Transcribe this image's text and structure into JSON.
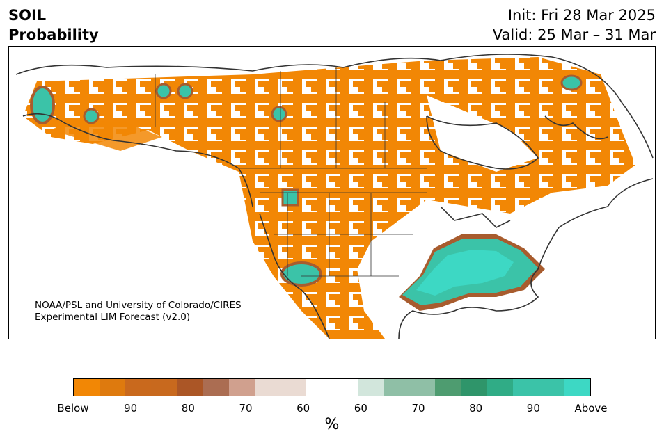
{
  "title": {
    "variable": "SOIL",
    "product": "Probability",
    "init": "Init: Fri 28 Mar 2025",
    "valid": "Valid: 25 Mar – 31 Mar"
  },
  "credit": {
    "line1": "NOAA/PSL and University of Colorado/CIRES",
    "line2": "Experimental LIM Forecast (v2.0)"
  },
  "colorbar": {
    "unit": "%",
    "colors": [
      "#f28705",
      "#de7a0e",
      "#c9691d",
      "#c8691e",
      "#ab5626",
      "#ab6d52",
      "#d0a08e",
      "#eadbd3",
      "#eadbd3",
      "#ffffff",
      "#ffffff",
      "#d2e6dc",
      "#8fbfa6",
      "#8fbfa6",
      "#4e9c70",
      "#2f956a",
      "#30ac86",
      "#3bc3a8",
      "#3bc3a8",
      "#3dd8c4"
    ],
    "ticks": [
      "Below",
      "90",
      "80",
      "70",
      "60",
      "60",
      "70",
      "80",
      "90",
      "Above"
    ]
  },
  "legend_colors": {
    "below": "#f28705",
    "above": "#3dd8c4",
    "near_normal": "#ffffff",
    "coastline": "#333333"
  }
}
